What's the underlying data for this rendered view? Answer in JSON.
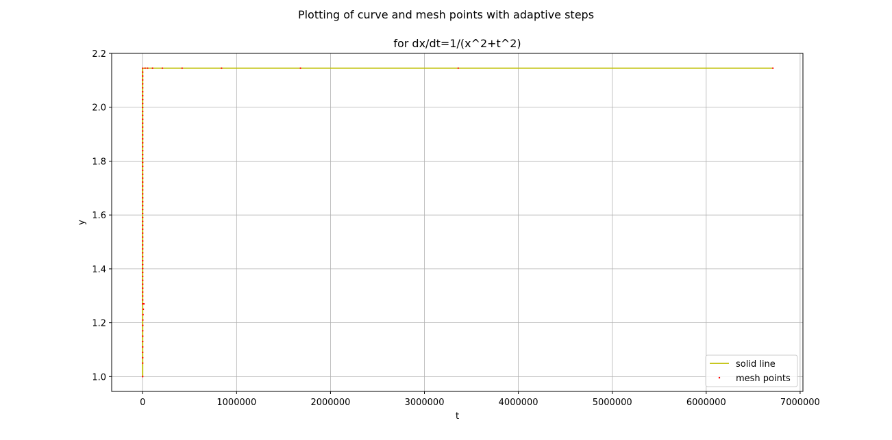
{
  "figure": {
    "suptitle": "Plotting of curve and mesh points with adaptive steps"
  },
  "chart_data": {
    "type": "line",
    "title": "for dx/dt=1/(x^2+t^2)",
    "xlabel": "t",
    "ylabel": "y",
    "xlim": [
      -330000,
      7030000
    ],
    "ylim": [
      0.945,
      2.2
    ],
    "xticks": [
      0,
      1000000,
      2000000,
      3000000,
      4000000,
      5000000,
      6000000,
      7000000
    ],
    "xtick_labels": [
      "0",
      "1000000",
      "2000000",
      "3000000",
      "4000000",
      "5000000",
      "6000000",
      "7000000"
    ],
    "yticks": [
      1.0,
      1.2,
      1.4,
      1.6,
      1.8,
      2.0,
      2.2
    ],
    "ytick_labels": [
      "1.0",
      "1.2",
      "1.4",
      "1.6",
      "1.8",
      "2.0",
      "2.2"
    ],
    "grid": true,
    "legend_position": "lower-right",
    "series": [
      {
        "name": "solid line",
        "kind": "line",
        "color": "#bfbf00",
        "x": [
          0,
          0.05,
          0.1,
          0.2,
          0.4,
          0.6,
          0.8,
          1,
          1.5,
          2,
          3,
          5,
          10,
          20,
          50,
          100,
          400,
          1600,
          6400,
          26000,
          52500,
          105000,
          210000,
          420000,
          840000,
          1680000,
          3360000,
          6710000
        ],
        "y": [
          1.0,
          1.05,
          1.1,
          1.19,
          1.35,
          1.49,
          1.61,
          1.7,
          1.85,
          1.94,
          2.03,
          2.09,
          2.12,
          2.135,
          2.141,
          2.143,
          2.144,
          2.1445,
          2.1448,
          2.145,
          2.145,
          2.145,
          2.145,
          2.145,
          2.145,
          2.145,
          2.145,
          2.145
        ]
      },
      {
        "name": "mesh points",
        "kind": "scatter",
        "color": "#ff0000",
        "x": [
          0,
          5,
          10,
          20,
          50,
          100,
          200,
          400,
          800,
          1600,
          3200,
          6400,
          13000,
          26000,
          52500,
          105000,
          210000,
          420000,
          840000,
          1680000,
          3360000,
          6710000
        ],
        "y": [
          1.0,
          1.05,
          1.07,
          1.09,
          1.11,
          1.13,
          1.15,
          1.17,
          1.19,
          1.21,
          1.23,
          1.25,
          1.27,
          2.145,
          2.145,
          2.145,
          2.145,
          2.145,
          2.145,
          2.145,
          2.145,
          2.145
        ]
      },
      {
        "name": "",
        "kind": "scatter-dense",
        "color": "#ff0000",
        "x_value": 0,
        "y_from": 1.27,
        "y_to": 2.145,
        "count": 60
      }
    ],
    "colors": {
      "grid": "#b0b0b0",
      "axes": "#000000"
    }
  }
}
